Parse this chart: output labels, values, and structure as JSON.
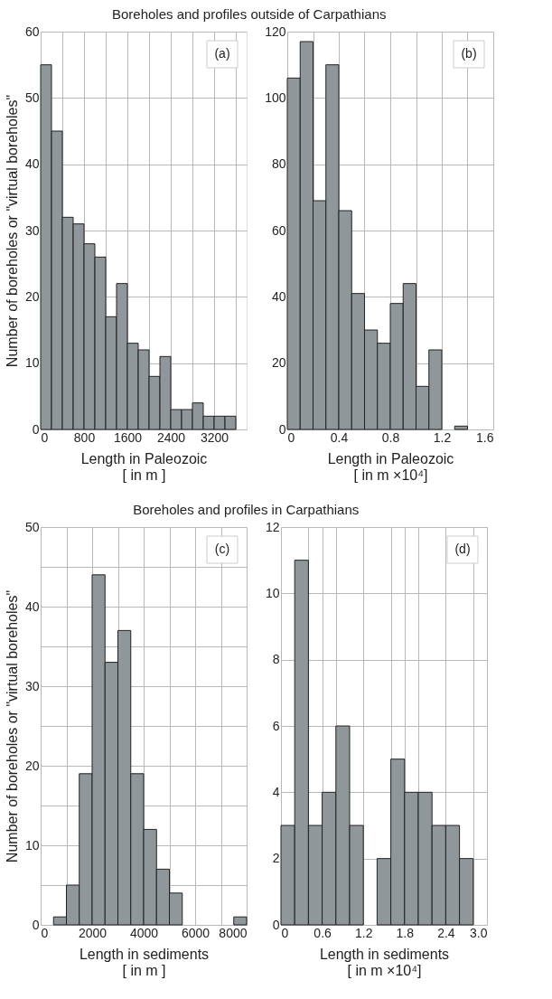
{
  "chart_data": [
    {
      "type": "histogram",
      "title": "Boreholes and profiles outside of Carpathians",
      "xlabel": "Length in Paleozoic\n[ in m ]",
      "ylabel": "Number of boreholes or \"virtual boreholes\"",
      "color": "#8f979b",
      "grid": true,
      "bins": [
        0,
        200,
        400,
        600,
        800,
        1000,
        1200,
        1400,
        1600,
        1800,
        2000,
        2200,
        2400,
        2600,
        2800,
        3000,
        3200,
        3400,
        3600
      ],
      "values": [
        55,
        45,
        32,
        31,
        28,
        26,
        17,
        22,
        13,
        12,
        8,
        11,
        3,
        3,
        4,
        2,
        2,
        2
      ],
      "xlim": [
        0,
        3800
      ],
      "xticks": [
        0,
        {
          "value": 400,
          "label": null
        },
        800,
        {
          "value": 1200,
          "label": null
        },
        1600,
        {
          "value": 2000,
          "label": null
        },
        2400,
        {
          "value": 2800,
          "label": null
        },
        3200,
        {
          "value": 3600,
          "label": null
        }
      ],
      "ylim": [
        0,
        60
      ],
      "yticks": [
        0,
        10,
        20,
        30,
        40,
        50,
        60
      ],
      "annotations": [
        "(a)"
      ]
    },
    {
      "type": "histogram",
      "xlabel": "Length in Paleozoic\n[ in m ×10⁴]",
      "color": "#8f979b",
      "grid": true,
      "bins": [
        0,
        0.1,
        0.2,
        0.3,
        0.4,
        0.5,
        0.6,
        0.7,
        0.8,
        0.9,
        1.0,
        1.1,
        1.2,
        1.3,
        1.4
      ],
      "values": [
        106,
        117,
        69,
        110,
        66,
        41,
        30,
        26,
        38,
        44,
        13,
        24,
        0,
        1
      ],
      "xlim": [
        0,
        1.6
      ],
      "xticks": [
        0,
        {
          "value": 0.2,
          "label": null
        },
        0.4,
        {
          "value": 0.6,
          "label": null
        },
        0.8,
        {
          "value": 1.0,
          "label": null
        },
        1.2,
        {
          "value": 1.4,
          "label": null
        },
        1.6
      ],
      "ylim": [
        0,
        120
      ],
      "yticks": [
        0,
        20,
        40,
        60,
        80,
        100,
        120
      ],
      "annotations": [
        "(b)"
      ]
    },
    {
      "type": "histogram",
      "title": "Boreholes and profiles in Carpathians",
      "xlabel": "Length in sediments\n[ in m ]",
      "ylabel": "Number of boreholes or \"virtual boreholes\"",
      "color": "#8f979b",
      "grid": true,
      "bins": [
        0,
        500,
        1000,
        1500,
        2000,
        2500,
        3000,
        3500,
        4000,
        4500,
        5000,
        5500,
        6000,
        6500,
        7000,
        7500,
        8000
      ],
      "values": [
        0,
        1,
        5,
        19,
        44,
        33,
        37,
        19,
        12,
        7,
        4,
        0,
        0,
        0,
        0,
        1
      ],
      "xlim": [
        0,
        8000
      ],
      "xticks": [
        0,
        {
          "value": 1000,
          "label": null
        },
        2000,
        {
          "value": 3000,
          "label": null
        },
        4000,
        {
          "value": 5000,
          "label": null
        },
        6000,
        {
          "value": 7000,
          "label": null
        },
        8000
      ],
      "ylim": [
        0,
        50
      ],
      "yticks": [
        0,
        {
          "value": 5,
          "label": null
        },
        10,
        {
          "value": 15,
          "label": null
        },
        20,
        {
          "value": 25,
          "label": null
        },
        30,
        {
          "value": 35,
          "label": null
        },
        40,
        {
          "value": 45,
          "label": null
        },
        50
      ],
      "annotations": [
        "(c)"
      ]
    },
    {
      "type": "histogram",
      "xlabel": "Length in sediments\n[ in m ×10⁴]",
      "color": "#8f979b",
      "grid": true,
      "bins": [
        0,
        0.2,
        0.4,
        0.6,
        0.8,
        1.0,
        1.2,
        1.4,
        1.6,
        1.8,
        2.0,
        2.2,
        2.4,
        2.6,
        2.8
      ],
      "values": [
        3,
        11,
        3,
        4,
        6,
        3,
        0,
        2,
        5,
        4,
        4,
        3,
        3,
        2
      ],
      "xlim": [
        0,
        3.0
      ],
      "xticks": [
        0,
        {
          "value": 0.4,
          "label": null
        },
        0.6,
        {
          "value": 0.8,
          "label": null
        },
        1.2,
        {
          "value": 1.6,
          "label": null
        },
        1.8,
        {
          "value": 2.0,
          "label": null
        },
        2.4,
        {
          "value": 2.8,
          "label": null
        },
        {
          "value": 3,
          "label": "3.0"
        }
      ],
      "ylim": [
        0,
        12
      ],
      "yticks": [
        0,
        2,
        4,
        6,
        8,
        10,
        12
      ],
      "annotations": [
        "(d)"
      ]
    }
  ]
}
